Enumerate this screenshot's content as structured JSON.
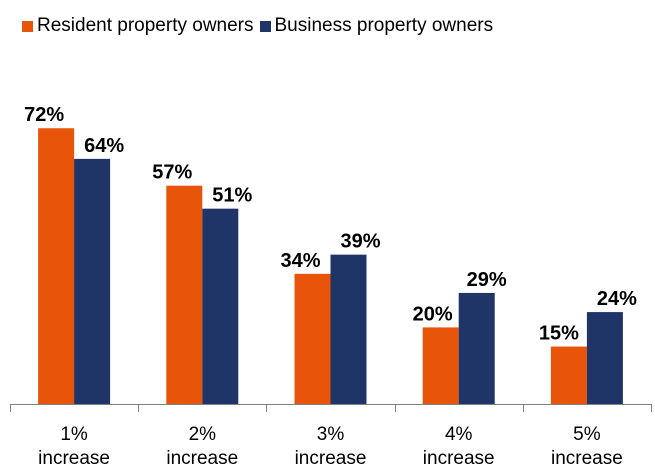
{
  "chart_data": {
    "type": "bar",
    "categories": [
      [
        "1%",
        "increase"
      ],
      [
        "2%",
        "increase"
      ],
      [
        "3%",
        "increase"
      ],
      [
        "4%",
        "increase"
      ],
      [
        "5%",
        "increase"
      ]
    ],
    "series": [
      {
        "name": "Resident property owners",
        "color": "#E8540A",
        "values": [
          72,
          57,
          34,
          20,
          15
        ],
        "labels": [
          "72%",
          "57%",
          "34%",
          "20%",
          "15%"
        ]
      },
      {
        "name": "Business property owners",
        "color": "#1F3467",
        "values": [
          64,
          51,
          39,
          29,
          24
        ],
        "labels": [
          "64%",
          "51%",
          "39%",
          "29%",
          "24%"
        ]
      }
    ],
    "title": "",
    "xlabel": "",
    "ylabel": "",
    "ylim": [
      0,
      100
    ],
    "grid": false,
    "legend": "top"
  }
}
